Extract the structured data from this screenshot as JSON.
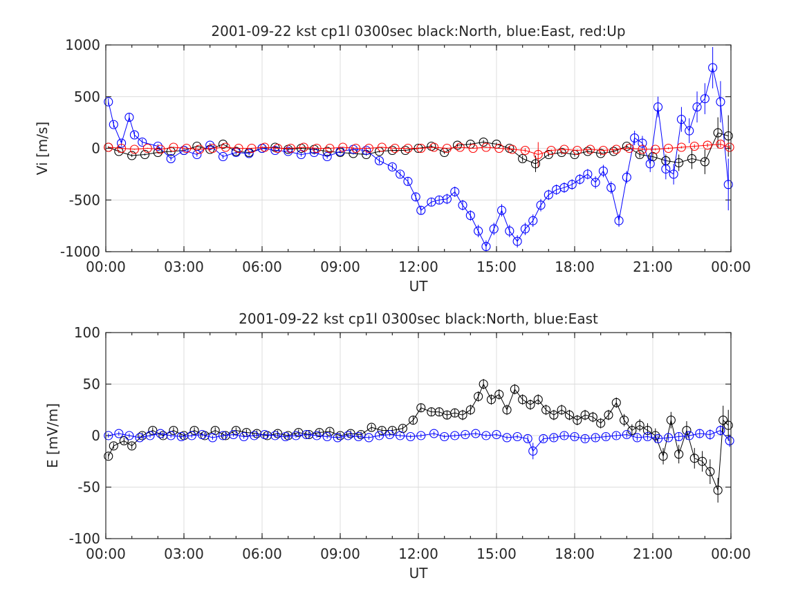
{
  "chart_data": [
    {
      "type": "scatter",
      "title": "2001-09-22 kst cp1l 0300sec black:North, blue:East, red:Up",
      "xlabel": "UT",
      "ylabel": "Vi [m/s]",
      "xlim_hours": [
        0,
        24
      ],
      "ylim": [
        -1000,
        1000
      ],
      "xtick_labels": [
        "00:00",
        "03:00",
        "06:00",
        "09:00",
        "12:00",
        "15:00",
        "18:00",
        "21:00",
        "00:00"
      ],
      "ytick_labels": [
        "1000",
        "500",
        "0",
        "-500",
        "-1000"
      ],
      "ytick_values": [
        1000,
        500,
        0,
        -500,
        -1000
      ],
      "grid": true,
      "series": [
        {
          "name": "North",
          "color": "#000000",
          "x": [
            0.1,
            0.5,
            1.0,
            1.5,
            2.0,
            2.5,
            3.0,
            3.5,
            4.0,
            4.5,
            5.0,
            5.5,
            6.0,
            6.5,
            7.0,
            7.5,
            8.0,
            8.5,
            9.0,
            9.5,
            10.0,
            10.5,
            11.0,
            11.5,
            12.0,
            12.5,
            13.0,
            13.5,
            14.0,
            14.5,
            15.0,
            15.5,
            16.0,
            16.5,
            17.0,
            17.5,
            18.0,
            18.5,
            19.0,
            19.5,
            20.0,
            20.5,
            21.0,
            21.5,
            22.0,
            22.5,
            23.0,
            23.5,
            23.9
          ],
          "y": [
            10,
            -30,
            -70,
            -60,
            -40,
            -30,
            -20,
            20,
            -10,
            40,
            -30,
            -40,
            0,
            10,
            -10,
            0,
            -10,
            -30,
            -40,
            -50,
            -60,
            -30,
            -20,
            -20,
            0,
            20,
            -40,
            30,
            40,
            60,
            40,
            0,
            -100,
            -150,
            -60,
            -40,
            -60,
            -30,
            -50,
            -30,
            20,
            -60,
            -80,
            -120,
            -140,
            -100,
            -130,
            150,
            120
          ],
          "error": [
            10,
            15,
            15,
            10,
            10,
            10,
            10,
            10,
            10,
            10,
            10,
            10,
            10,
            10,
            10,
            10,
            10,
            10,
            10,
            10,
            10,
            10,
            10,
            10,
            10,
            15,
            15,
            15,
            15,
            20,
            15,
            20,
            30,
            80,
            20,
            20,
            20,
            20,
            20,
            20,
            20,
            30,
            40,
            60,
            80,
            100,
            120,
            150,
            200
          ]
        },
        {
          "name": "East",
          "color": "#0000ff",
          "x": [
            0.1,
            0.3,
            0.6,
            0.9,
            1.1,
            1.4,
            2.0,
            2.5,
            3.0,
            3.5,
            4.0,
            4.5,
            5.0,
            5.5,
            6.0,
            6.5,
            7.0,
            7.5,
            8.0,
            8.5,
            9.0,
            9.5,
            10.0,
            10.5,
            11.0,
            11.3,
            11.6,
            11.9,
            12.1,
            12.5,
            12.8,
            13.1,
            13.4,
            13.7,
            14.0,
            14.3,
            14.6,
            14.9,
            15.2,
            15.5,
            15.8,
            16.1,
            16.4,
            16.7,
            17.0,
            17.3,
            17.6,
            17.9,
            18.2,
            18.5,
            18.8,
            19.1,
            19.4,
            19.7,
            20.0,
            20.3,
            20.6,
            20.9,
            21.2,
            21.5,
            21.8,
            22.1,
            22.4,
            22.7,
            23.0,
            23.3,
            23.6,
            23.9
          ],
          "y": [
            450,
            230,
            50,
            300,
            130,
            60,
            20,
            -100,
            -20,
            -60,
            30,
            -80,
            -40,
            -50,
            0,
            -20,
            -30,
            -60,
            -40,
            -80,
            -30,
            -10,
            -20,
            -120,
            -180,
            -250,
            -320,
            -470,
            -600,
            -520,
            -500,
            -490,
            -420,
            -550,
            -650,
            -800,
            -950,
            -780,
            -600,
            -800,
            -900,
            -780,
            -700,
            -550,
            -450,
            -400,
            -380,
            -350,
            -300,
            -250,
            -330,
            -220,
            -380,
            -700,
            -280,
            100,
            50,
            -150,
            400,
            -200,
            -250,
            280,
            170,
            400,
            480,
            780,
            450,
            -350
          ],
          "error": [
            30,
            30,
            30,
            40,
            30,
            30,
            20,
            20,
            20,
            20,
            20,
            20,
            20,
            20,
            20,
            20,
            20,
            20,
            20,
            20,
            20,
            20,
            30,
            30,
            30,
            30,
            40,
            40,
            40,
            40,
            40,
            50,
            50,
            50,
            50,
            60,
            60,
            60,
            60,
            60,
            60,
            60,
            60,
            60,
            50,
            50,
            50,
            50,
            50,
            50,
            60,
            60,
            60,
            60,
            60,
            70,
            70,
            80,
            100,
            100,
            100,
            120,
            120,
            150,
            150,
            200,
            200,
            250
          ]
        },
        {
          "name": "Up",
          "color": "#ff0000",
          "x": [
            0.1,
            0.6,
            1.1,
            1.6,
            2.1,
            2.6,
            3.1,
            3.6,
            4.1,
            4.6,
            5.1,
            5.6,
            6.1,
            6.6,
            7.1,
            7.6,
            8.1,
            8.6,
            9.1,
            9.6,
            10.1,
            10.6,
            11.1,
            11.6,
            12.1,
            12.6,
            13.1,
            13.6,
            14.1,
            14.6,
            15.1,
            15.6,
            16.1,
            16.6,
            17.1,
            17.6,
            18.1,
            18.6,
            19.1,
            19.6,
            20.1,
            20.6,
            21.1,
            21.6,
            22.1,
            22.6,
            23.1,
            23.6,
            23.95
          ],
          "y": [
            10,
            0,
            -10,
            0,
            -10,
            10,
            0,
            -10,
            0,
            10,
            0,
            0,
            10,
            0,
            0,
            10,
            0,
            0,
            10,
            0,
            0,
            10,
            0,
            0,
            0,
            10,
            0,
            10,
            0,
            10,
            0,
            -10,
            -20,
            -60,
            -20,
            -10,
            -20,
            -10,
            -20,
            -10,
            0,
            -10,
            -10,
            0,
            10,
            20,
            30,
            40,
            10
          ],
          "error": [
            5,
            5,
            5,
            5,
            5,
            5,
            5,
            5,
            5,
            5,
            5,
            5,
            5,
            5,
            5,
            5,
            5,
            5,
            5,
            5,
            5,
            5,
            5,
            5,
            5,
            5,
            5,
            5,
            5,
            5,
            5,
            10,
            20,
            120,
            10,
            10,
            10,
            10,
            10,
            10,
            10,
            10,
            10,
            10,
            10,
            20,
            20,
            30,
            20
          ]
        }
      ]
    },
    {
      "type": "scatter",
      "title": "2001-09-22 kst cp1l 0300sec black:North, blue:East",
      "xlabel": "UT",
      "ylabel": "E [mV/m]",
      "xlim_hours": [
        0,
        24
      ],
      "ylim": [
        -100,
        100
      ],
      "xtick_labels": [
        "00:00",
        "03:00",
        "06:00",
        "09:00",
        "12:00",
        "15:00",
        "18:00",
        "21:00",
        "00:00"
      ],
      "ytick_labels": [
        "100",
        "50",
        "0",
        "-50",
        "-100"
      ],
      "ytick_values": [
        100,
        50,
        0,
        -50,
        -100
      ],
      "grid": true,
      "series": [
        {
          "name": "North",
          "color": "#000000",
          "x": [
            0.1,
            0.3,
            0.7,
            1.0,
            1.4,
            1.8,
            2.2,
            2.6,
            3.0,
            3.4,
            3.8,
            4.2,
            4.6,
            5.0,
            5.4,
            5.8,
            6.2,
            6.6,
            7.0,
            7.4,
            7.8,
            8.2,
            8.6,
            9.0,
            9.4,
            9.8,
            10.2,
            10.6,
            11.0,
            11.4,
            11.8,
            12.1,
            12.5,
            12.8,
            13.1,
            13.4,
            13.7,
            14.0,
            14.3,
            14.5,
            14.8,
            15.1,
            15.4,
            15.7,
            16.0,
            16.3,
            16.6,
            16.9,
            17.2,
            17.5,
            17.8,
            18.1,
            18.4,
            18.7,
            19.0,
            19.3,
            19.6,
            19.9,
            20.2,
            20.5,
            20.8,
            21.1,
            21.4,
            21.7,
            22.0,
            22.3,
            22.6,
            22.9,
            23.2,
            23.5,
            23.7,
            23.9
          ],
          "y": [
            -20,
            -10,
            -5,
            -10,
            0,
            5,
            0,
            5,
            0,
            5,
            0,
            5,
            0,
            5,
            3,
            2,
            0,
            2,
            0,
            3,
            1,
            3,
            4,
            0,
            2,
            1,
            8,
            5,
            5,
            7,
            15,
            27,
            23,
            23,
            20,
            22,
            20,
            25,
            38,
            50,
            35,
            40,
            25,
            45,
            35,
            30,
            35,
            25,
            20,
            25,
            20,
            15,
            20,
            18,
            12,
            20,
            32,
            15,
            5,
            10,
            5,
            0,
            -20,
            15,
            -18,
            5,
            -22,
            -25,
            -35,
            -53,
            15,
            10
          ],
          "error": [
            3,
            3,
            3,
            3,
            3,
            3,
            3,
            3,
            3,
            3,
            3,
            3,
            3,
            3,
            3,
            3,
            3,
            3,
            3,
            3,
            3,
            3,
            3,
            3,
            3,
            3,
            3,
            3,
            3,
            3,
            4,
            4,
            4,
            4,
            4,
            4,
            5,
            5,
            5,
            5,
            5,
            5,
            5,
            5,
            5,
            5,
            5,
            5,
            5,
            5,
            5,
            5,
            5,
            5,
            5,
            5,
            5,
            6,
            6,
            6,
            7,
            7,
            8,
            8,
            9,
            9,
            10,
            10,
            12,
            12,
            14,
            15
          ]
        },
        {
          "name": "East",
          "color": "#0000ff",
          "x": [
            0.1,
            0.5,
            0.9,
            1.3,
            1.7,
            2.1,
            2.5,
            2.9,
            3.3,
            3.7,
            4.1,
            4.5,
            4.9,
            5.3,
            5.7,
            6.1,
            6.5,
            6.9,
            7.3,
            7.7,
            8.1,
            8.5,
            8.9,
            9.3,
            9.7,
            10.1,
            10.5,
            10.9,
            11.3,
            11.7,
            12.1,
            12.6,
            13.0,
            13.4,
            13.8,
            14.2,
            14.6,
            15.0,
            15.4,
            15.8,
            16.2,
            16.4,
            16.8,
            17.2,
            17.6,
            18.0,
            18.4,
            18.8,
            19.2,
            19.6,
            20.0,
            20.4,
            20.8,
            21.2,
            21.6,
            22.0,
            22.4,
            22.8,
            23.2,
            23.6,
            23.95
          ],
          "y": [
            0,
            2,
            0,
            -2,
            0,
            2,
            0,
            -1,
            0,
            1,
            -2,
            0,
            1,
            -1,
            0,
            1,
            0,
            -1,
            0,
            1,
            0,
            -1,
            -2,
            0,
            -1,
            -2,
            0,
            1,
            0,
            -1,
            0,
            2,
            -1,
            0,
            1,
            2,
            0,
            1,
            -2,
            -1,
            -3,
            -15,
            -3,
            -2,
            0,
            -1,
            -3,
            -2,
            -1,
            0,
            1,
            -2,
            -1,
            -3,
            -2,
            -1,
            0,
            2,
            1,
            5,
            -5
          ],
          "error": [
            2,
            2,
            2,
            2,
            2,
            2,
            2,
            2,
            2,
            2,
            2,
            2,
            2,
            2,
            2,
            2,
            2,
            2,
            2,
            2,
            2,
            2,
            2,
            2,
            2,
            2,
            2,
            2,
            2,
            2,
            2,
            2,
            2,
            2,
            2,
            2,
            2,
            2,
            2,
            2,
            3,
            8,
            3,
            3,
            3,
            3,
            3,
            3,
            3,
            3,
            3,
            3,
            3,
            3,
            3,
            4,
            4,
            4,
            5,
            5,
            6
          ]
        }
      ]
    }
  ]
}
